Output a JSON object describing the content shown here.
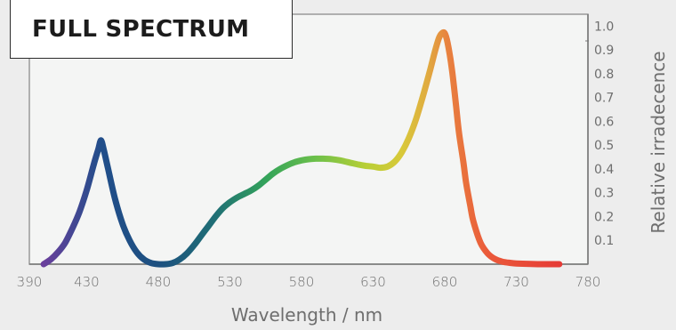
{
  "chart_data": {
    "type": "line",
    "title": "FULL SPECTRUM",
    "xlabel": "Wavelength / nm",
    "ylabel": "Relative irradecence",
    "xlim": [
      390,
      780
    ],
    "ylim": [
      0,
      1.05
    ],
    "x_ticks": [
      390,
      430,
      480,
      530,
      580,
      630,
      680,
      730,
      780
    ],
    "y_ticks": [
      "0.1",
      "0.2",
      "0.3",
      "0.4",
      "0.5",
      "0.6",
      "0.7",
      "0.8",
      "0.9",
      "1.0"
    ],
    "grid": false,
    "series": [
      {
        "x": [
          400,
          405,
          410,
          415,
          420,
          425,
          430,
          435,
          438,
          440,
          442,
          445,
          450,
          455,
          460,
          465,
          470,
          475,
          480,
          485,
          490,
          495,
          500,
          505,
          510,
          515,
          520,
          525,
          530,
          535,
          540,
          545,
          550,
          555,
          560,
          565,
          570,
          575,
          580,
          585,
          590,
          595,
          600,
          605,
          610,
          615,
          620,
          625,
          630,
          635,
          640,
          645,
          650,
          655,
          660,
          665,
          670,
          673,
          676,
          678,
          680,
          682,
          685,
          688,
          690,
          693,
          695,
          698,
          700,
          705,
          710,
          715,
          720,
          725,
          730,
          740,
          750,
          760
        ],
        "y": [
          0.0,
          0.02,
          0.05,
          0.09,
          0.15,
          0.22,
          0.31,
          0.42,
          0.48,
          0.52,
          0.48,
          0.4,
          0.27,
          0.17,
          0.1,
          0.05,
          0.02,
          0.005,
          0.0,
          0.0,
          0.005,
          0.02,
          0.045,
          0.08,
          0.12,
          0.16,
          0.2,
          0.235,
          0.26,
          0.28,
          0.295,
          0.31,
          0.33,
          0.355,
          0.38,
          0.4,
          0.415,
          0.428,
          0.436,
          0.441,
          0.443,
          0.443,
          0.442,
          0.438,
          0.432,
          0.425,
          0.418,
          0.413,
          0.41,
          0.405,
          0.41,
          0.43,
          0.47,
          0.53,
          0.61,
          0.71,
          0.82,
          0.89,
          0.95,
          0.97,
          0.97,
          0.93,
          0.82,
          0.66,
          0.55,
          0.43,
          0.34,
          0.24,
          0.18,
          0.09,
          0.045,
          0.022,
          0.011,
          0.006,
          0.003,
          0.001,
          0.0,
          0.0
        ]
      }
    ],
    "gradient_stops": [
      {
        "nm": 400,
        "color": "#6a3f9c"
      },
      {
        "nm": 440,
        "color": "#214e8a"
      },
      {
        "nm": 480,
        "color": "#1d5080"
      },
      {
        "nm": 520,
        "color": "#1f6f75"
      },
      {
        "nm": 555,
        "color": "#33a35a"
      },
      {
        "nm": 590,
        "color": "#6cc04a"
      },
      {
        "nm": 625,
        "color": "#b8cf36"
      },
      {
        "nm": 650,
        "color": "#d8c93a"
      },
      {
        "nm": 668,
        "color": "#e0ab40"
      },
      {
        "nm": 682,
        "color": "#e8823f"
      },
      {
        "nm": 710,
        "color": "#ea5a3a"
      },
      {
        "nm": 760,
        "color": "#e63b36"
      }
    ],
    "colors": {
      "background": "#ededed",
      "plot_background": "#f4f5f4",
      "axis": "#9a9a9a",
      "text": "#6e6e6e"
    }
  }
}
